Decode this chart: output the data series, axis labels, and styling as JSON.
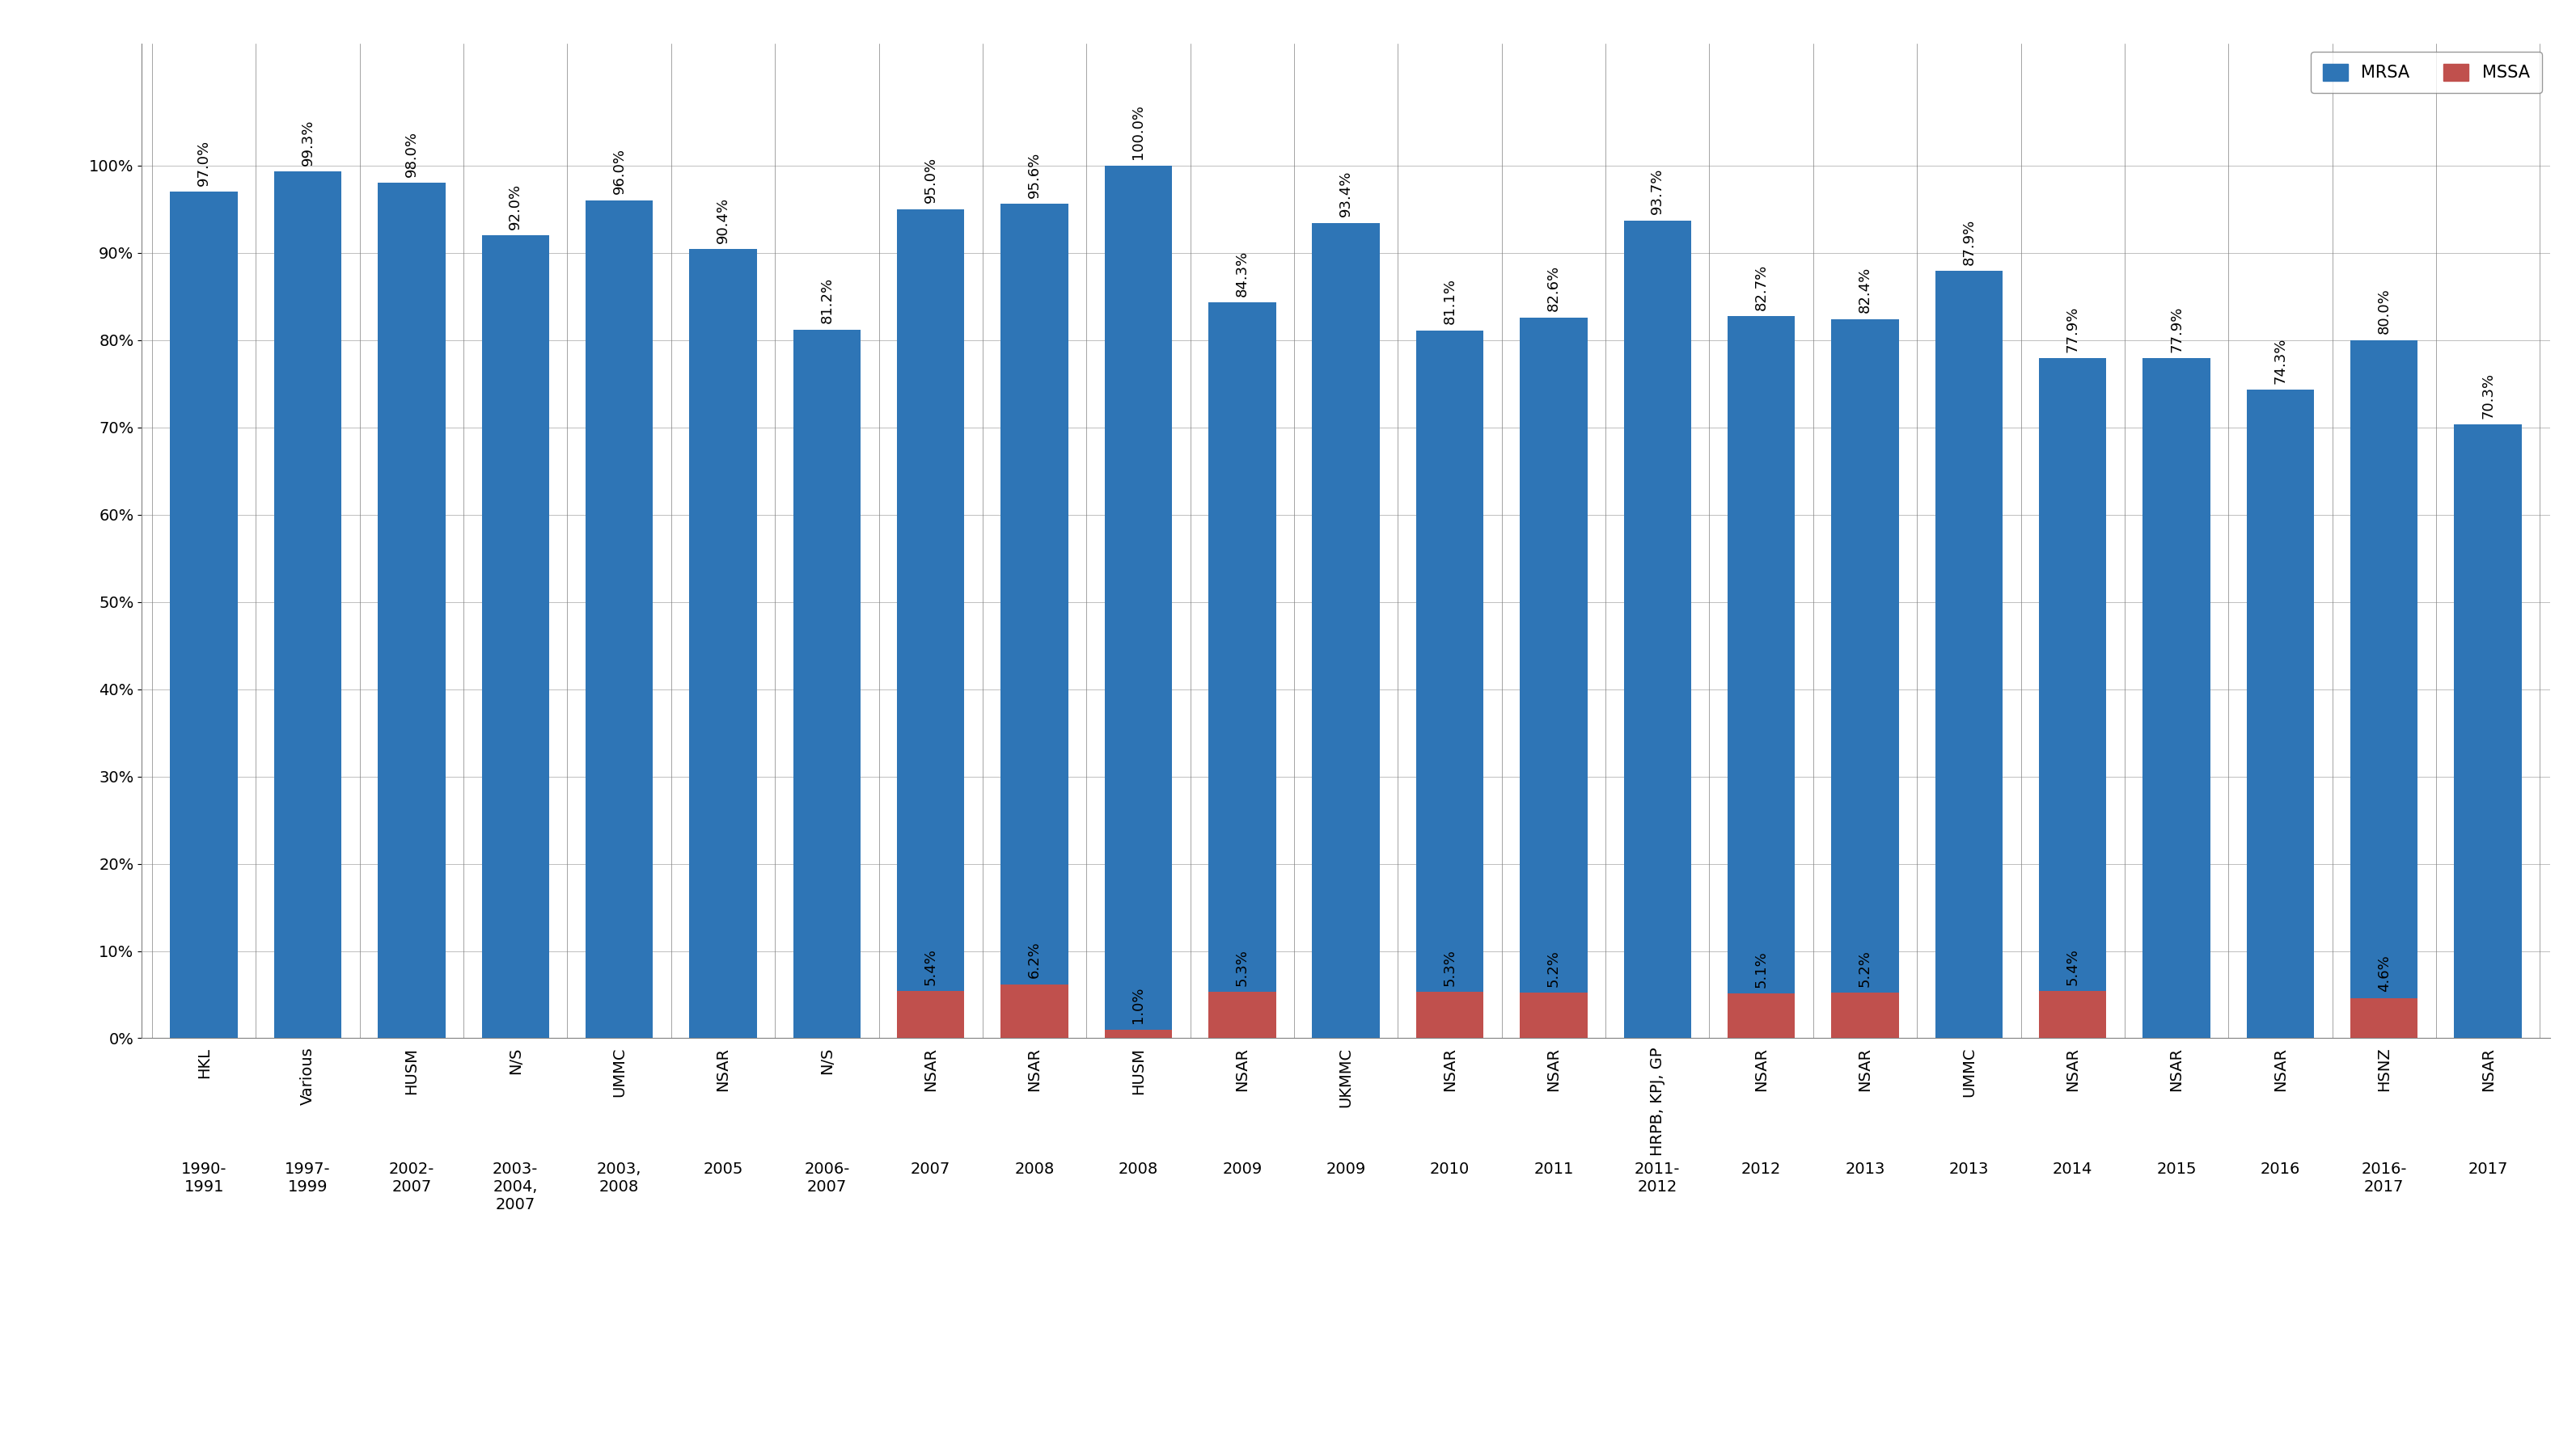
{
  "groups": [
    {
      "location": "HKL",
      "year": "1990-\n1991",
      "mrsa": 97.0,
      "mssa": null
    },
    {
      "location": "Various",
      "year": "1997-\n1999",
      "mrsa": 99.3,
      "mssa": null
    },
    {
      "location": "HUSM",
      "year": "2002-\n2007",
      "mrsa": 98.0,
      "mssa": null
    },
    {
      "location": "N/S",
      "year": "2003-\n2004,\n2007",
      "mrsa": 92.0,
      "mssa": null
    },
    {
      "location": "UMMC",
      "year": "2003,\n2008",
      "mrsa": 96.0,
      "mssa": null
    },
    {
      "location": "NSAR",
      "year": "2005",
      "mrsa": 90.4,
      "mssa": null
    },
    {
      "location": "N/S",
      "year": "2006-\n2007",
      "mrsa": 81.2,
      "mssa": null
    },
    {
      "location": "NSAR",
      "year": "2007",
      "mrsa": 95.0,
      "mssa": 5.4
    },
    {
      "location": "NSAR",
      "year": "2008",
      "mrsa": 95.6,
      "mssa": 6.2
    },
    {
      "location": "HUSM",
      "year": "2008",
      "mrsa": 100.0,
      "mssa": 1.0
    },
    {
      "location": "NSAR",
      "year": "2009",
      "mrsa": 84.3,
      "mssa": 5.3
    },
    {
      "location": "UKMMC",
      "year": "2009",
      "mrsa": 93.4,
      "mssa": null
    },
    {
      "location": "NSAR",
      "year": "2010",
      "mrsa": 81.1,
      "mssa": 5.3
    },
    {
      "location": "NSAR",
      "year": "2011",
      "mrsa": 82.6,
      "mssa": 5.2
    },
    {
      "location": "HRPB, KPJ, GP",
      "year": "2011-\n2012",
      "mrsa": 93.7,
      "mssa": null
    },
    {
      "location": "NSAR",
      "year": "2012",
      "mrsa": 82.7,
      "mssa": 5.1
    },
    {
      "location": "NSAR",
      "year": "2013",
      "mrsa": 82.4,
      "mssa": 5.2
    },
    {
      "location": "UMMC",
      "year": "2013",
      "mrsa": 87.9,
      "mssa": null
    },
    {
      "location": "NSAR",
      "year": "2014",
      "mrsa": 77.9,
      "mssa": 5.4
    },
    {
      "location": "NSAR",
      "year": "2015",
      "mrsa": 77.9,
      "mssa": null
    },
    {
      "location": "NSAR",
      "year": "2016",
      "mrsa": 74.3,
      "mssa": null
    },
    {
      "location": "HSNZ",
      "year": "2016-\n2017",
      "mrsa": 80.0,
      "mssa": 4.6
    },
    {
      "location": "NSAR",
      "year": "2017",
      "mrsa": 70.3,
      "mssa": null
    }
  ],
  "mrsa_color": "#2E75B6",
  "mssa_color": "#C0504D",
  "yticks": [
    0,
    10,
    20,
    30,
    40,
    50,
    60,
    70,
    80,
    90,
    100
  ],
  "ytick_labels": [
    "0%",
    "10%",
    "20%",
    "30%",
    "40%",
    "50%",
    "60%",
    "70%",
    "80%",
    "90%",
    "100%"
  ],
  "bar_width": 0.65,
  "label_fontsize": 14,
  "tick_fontsize": 14,
  "legend_fontsize": 15,
  "annotation_fontsize": 13
}
